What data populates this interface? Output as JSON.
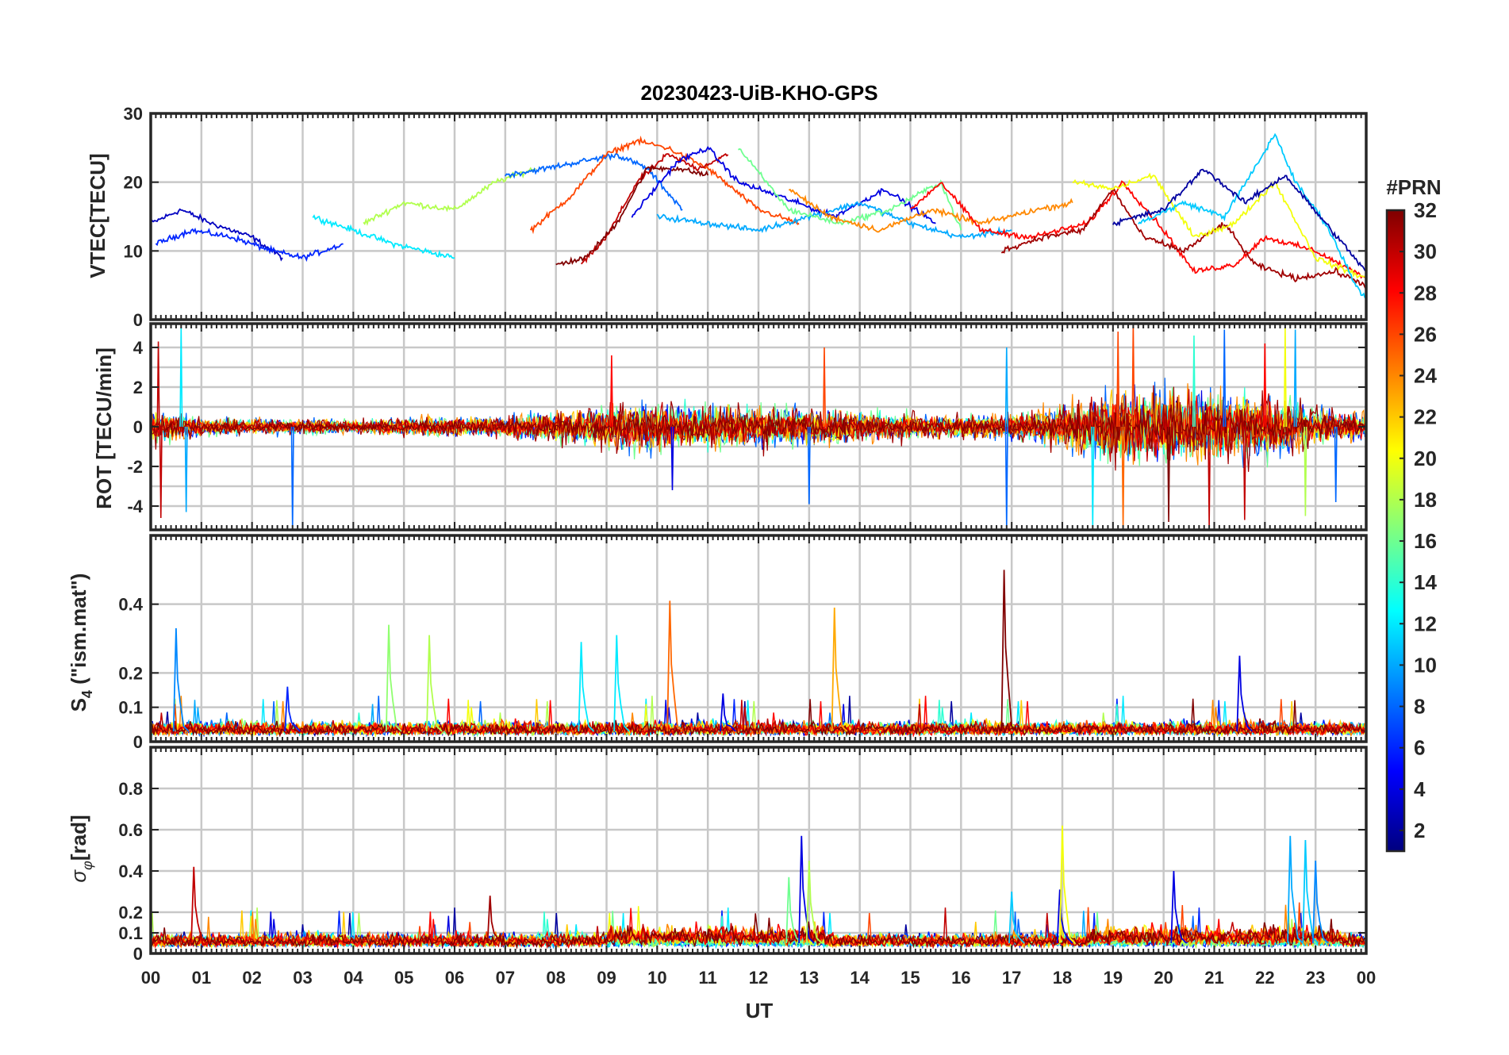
{
  "chart_data": {
    "type": "line",
    "title": "20230423-UiB-KHO-GPS",
    "xlabel": "UT",
    "x_ticks": [
      "00",
      "01",
      "02",
      "03",
      "04",
      "05",
      "06",
      "07",
      "08",
      "09",
      "10",
      "11",
      "12",
      "13",
      "14",
      "15",
      "16",
      "17",
      "18",
      "19",
      "20",
      "21",
      "22",
      "23",
      "00"
    ],
    "xlim": [
      0,
      24
    ],
    "grid": true,
    "colorbar": {
      "title": "#PRN",
      "range": [
        1,
        32
      ],
      "ticks": [
        "32",
        "30",
        "28",
        "26",
        "24",
        "22",
        "20",
        "18",
        "16",
        "14",
        "12",
        "10",
        "8",
        "6",
        "4",
        "2"
      ],
      "colormap": "jet",
      "colors": [
        "#00007f",
        "#0000ff",
        "#007fff",
        "#00ffff",
        "#7fff7f",
        "#ffff00",
        "#ff7f00",
        "#ff0000",
        "#7f0000"
      ],
      "placement": "right"
    },
    "panels": [
      {
        "ylabel": "VTEC[TECU]",
        "ylim": [
          0,
          30
        ],
        "y_ticks": [
          "30",
          "20",
          "10",
          "0"
        ],
        "y_tick_values": [
          30,
          20,
          10,
          0
        ],
        "series": [
          {
            "prn": 3,
            "points": [
              [
                0,
                14
              ],
              [
                0.6,
                16
              ],
              [
                1.2,
                14
              ],
              [
                2,
                12
              ],
              [
                2.6,
                9
              ]
            ]
          },
          {
            "prn": 6,
            "points": [
              [
                0.1,
                11
              ],
              [
                0.8,
                13
              ],
              [
                1.6,
                12
              ],
              [
                2.4,
                10
              ],
              [
                3,
                9
              ],
              [
                3.8,
                11
              ]
            ]
          },
          {
            "prn": 12,
            "points": [
              [
                3.2,
                15
              ],
              [
                4,
                13
              ],
              [
                4.8,
                11
              ],
              [
                5.4,
                10
              ],
              [
                6,
                9
              ]
            ]
          },
          {
            "prn": 18,
            "points": [
              [
                4.2,
                14
              ],
              [
                5,
                17
              ],
              [
                6,
                16
              ],
              [
                6.8,
                20
              ],
              [
                7.6,
                22
              ]
            ]
          },
          {
            "prn": 8,
            "points": [
              [
                7,
                21
              ],
              [
                7.8,
                22
              ],
              [
                8.5,
                23
              ],
              [
                9.2,
                24
              ],
              [
                9.8,
                22
              ],
              [
                10.5,
                16
              ]
            ]
          },
          {
            "prn": 26,
            "points": [
              [
                7.5,
                13
              ],
              [
                8.3,
                18
              ],
              [
                9,
                24
              ],
              [
                9.6,
                26
              ],
              [
                10.2,
                25
              ],
              [
                11,
                22
              ],
              [
                12,
                16
              ],
              [
                12.8,
                14
              ]
            ]
          },
          {
            "prn": 30,
            "points": [
              [
                8.5,
                8
              ],
              [
                9,
                12
              ],
              [
                9.6,
                20
              ],
              [
                10.2,
                24
              ],
              [
                10.8,
                22
              ],
              [
                11.4,
                24
              ]
            ]
          },
          {
            "prn": 32,
            "points": [
              [
                8,
                8
              ],
              [
                8.6,
                9
              ],
              [
                9.2,
                14
              ],
              [
                9.8,
                22
              ],
              [
                10.4,
                22
              ],
              [
                11,
                21
              ]
            ]
          },
          {
            "prn": 4,
            "points": [
              [
                9.5,
                15
              ],
              [
                10.4,
                23
              ],
              [
                11,
                25
              ],
              [
                11.6,
                20
              ],
              [
                12.4,
                18
              ],
              [
                13.5,
                15
              ],
              [
                14.5,
                19
              ],
              [
                15.5,
                14
              ]
            ]
          },
          {
            "prn": 10,
            "points": [
              [
                10,
                15
              ],
              [
                11,
                14
              ],
              [
                12,
                13
              ],
              [
                13,
                15
              ],
              [
                14,
                17
              ],
              [
                15,
                14
              ],
              [
                16,
                12
              ],
              [
                17,
                13
              ]
            ]
          },
          {
            "prn": 16,
            "points": [
              [
                11.6,
                25
              ],
              [
                12.6,
                16
              ],
              [
                13.6,
                14
              ],
              [
                14.6,
                16
              ],
              [
                15.6,
                20
              ],
              [
                16,
                13
              ]
            ]
          },
          {
            "prn": 24,
            "points": [
              [
                12.6,
                19
              ],
              [
                13.4,
                15
              ],
              [
                14.4,
                13
              ],
              [
                15.4,
                16
              ],
              [
                16.4,
                14
              ],
              [
                17.5,
                16
              ],
              [
                18.2,
                17
              ]
            ]
          },
          {
            "prn": 28,
            "points": [
              [
                15,
                16
              ],
              [
                15.6,
                20
              ],
              [
                16.4,
                13
              ],
              [
                17.4,
                12
              ],
              [
                18.5,
                14
              ],
              [
                19.2,
                20
              ],
              [
                20,
                13
              ],
              [
                20.6,
                7
              ],
              [
                21.4,
                8
              ],
              [
                22,
                12
              ],
              [
                23,
                10
              ],
              [
                24,
                6
              ]
            ]
          },
          {
            "prn": 31,
            "points": [
              [
                16.8,
                10
              ],
              [
                17.6,
                12
              ],
              [
                18.4,
                13
              ],
              [
                19,
                19
              ],
              [
                19.6,
                12
              ],
              [
                20.4,
                10
              ],
              [
                21.2,
                14
              ],
              [
                21.8,
                8
              ],
              [
                22.6,
                6
              ],
              [
                23.4,
                7
              ],
              [
                24,
                5
              ]
            ]
          },
          {
            "prn": 20,
            "points": [
              [
                18.2,
                20
              ],
              [
                19,
                19
              ],
              [
                19.8,
                21
              ],
              [
                20.6,
                12
              ],
              [
                21.4,
                14
              ],
              [
                22.2,
                20
              ],
              [
                23,
                9
              ],
              [
                24,
                6
              ]
            ]
          },
          {
            "prn": 11,
            "points": [
              [
                19.5,
                14
              ],
              [
                20.4,
                17
              ],
              [
                21.2,
                15
              ],
              [
                21.8,
                22
              ],
              [
                22.2,
                27
              ],
              [
                22.6,
                20
              ],
              [
                23.2,
                14
              ],
              [
                23.8,
                5
              ],
              [
                24,
                3
              ]
            ]
          },
          {
            "prn": 2,
            "points": [
              [
                19,
                14
              ],
              [
                20,
                16
              ],
              [
                20.8,
                22
              ],
              [
                21.6,
                17
              ],
              [
                22.4,
                21
              ],
              [
                23.2,
                14
              ],
              [
                24,
                7
              ]
            ]
          }
        ]
      },
      {
        "ylabel": "ROT [TECU/min]",
        "ylim": [
          -5.2,
          5.2
        ],
        "y_ticks": [
          "4",
          "2",
          "0",
          "-2",
          "-4"
        ],
        "y_tick_values": [
          4,
          2,
          0,
          -2,
          -4
        ],
        "activity_profile": {
          "x": [
            0,
            1,
            2,
            3,
            4,
            5,
            6,
            7,
            8,
            9,
            10,
            11,
            12,
            13,
            14,
            15,
            16,
            17,
            18,
            19,
            20,
            21,
            22,
            23,
            24
          ],
          "amplitude": [
            1.4,
            0.7,
            0.6,
            0.6,
            0.5,
            0.7,
            0.8,
            0.9,
            1.2,
            1.6,
            1.9,
            1.7,
            1.6,
            1.5,
            1.2,
            1.0,
            0.9,
            1.0,
            1.6,
            2.8,
            3.0,
            2.8,
            2.6,
            1.5,
            1.0
          ]
        },
        "spikes": [
          [
            0.15,
            4.3,
            30
          ],
          [
            0.2,
            -4.6,
            30
          ],
          [
            0.6,
            5.0,
            12
          ],
          [
            0.7,
            -4.3,
            10
          ],
          [
            2.8,
            -5.2,
            8
          ],
          [
            9.1,
            3.6,
            28
          ],
          [
            10.3,
            -3.2,
            4
          ],
          [
            13.0,
            -3.9,
            8
          ],
          [
            13.3,
            4.0,
            26
          ],
          [
            16.9,
            -5.1,
            8
          ],
          [
            16.9,
            4.0,
            10
          ],
          [
            18.6,
            -5.1,
            12
          ],
          [
            19.1,
            4.8,
            26
          ],
          [
            19.2,
            -5.2,
            25
          ],
          [
            19.4,
            5.2,
            26
          ],
          [
            20.1,
            -4.8,
            32
          ],
          [
            20.6,
            4.6,
            14
          ],
          [
            20.9,
            -5.0,
            30
          ],
          [
            21.2,
            4.9,
            8
          ],
          [
            21.6,
            -4.7,
            30
          ],
          [
            22.0,
            4.2,
            28
          ],
          [
            22.4,
            5.0,
            20
          ],
          [
            22.6,
            4.9,
            10
          ],
          [
            22.8,
            -4.5,
            18
          ],
          [
            23.4,
            -3.8,
            8
          ]
        ]
      },
      {
        "ylabel": "S4 (\"ism.mat\")",
        "ylabel_main": "S",
        "ylabel_sub": "4",
        "ylabel_rest": " (\"ism.mat\")",
        "ylim": [
          0,
          0.6
        ],
        "y_ticks": [
          "0.4",
          "0.2",
          "0.1",
          "0"
        ],
        "y_tick_values": [
          0.4,
          0.2,
          0.1,
          0
        ],
        "baseline": 0.03,
        "spikes": [
          [
            0.5,
            0.33,
            9
          ],
          [
            2.7,
            0.16,
            6
          ],
          [
            4.7,
            0.34,
            17
          ],
          [
            5.5,
            0.31,
            18
          ],
          [
            8.5,
            0.29,
            12
          ],
          [
            9.2,
            0.31,
            12
          ],
          [
            10.25,
            0.41,
            25
          ],
          [
            11.3,
            0.14,
            4
          ],
          [
            13.5,
            0.39,
            23
          ],
          [
            16.85,
            0.5,
            32
          ],
          [
            21.5,
            0.25,
            4
          ]
        ]
      },
      {
        "ylabel": "σφ[rad]",
        "ylabel_main": "σ",
        "ylabel_sub": "φ",
        "ylabel_rest": "[rad]",
        "ylim": [
          0,
          1.0
        ],
        "y_ticks": [
          "0.8",
          "0.6",
          "0.4",
          "0.2",
          "0.1",
          "0"
        ],
        "y_tick_values": [
          0.8,
          0.6,
          0.4,
          0.2,
          0.1,
          0
        ],
        "baseline": 0.05,
        "spikes": [
          [
            0.85,
            0.42,
            30
          ],
          [
            6.7,
            0.28,
            31
          ],
          [
            12.6,
            0.37,
            16
          ],
          [
            12.85,
            0.57,
            4
          ],
          [
            13.0,
            0.45,
            18
          ],
          [
            17.0,
            0.3,
            11
          ],
          [
            17.95,
            0.31,
            4
          ],
          [
            18.0,
            0.62,
            20
          ],
          [
            20.2,
            0.4,
            4
          ],
          [
            22.5,
            0.57,
            10
          ],
          [
            22.8,
            0.55,
            11
          ],
          [
            23.0,
            0.45,
            9
          ]
        ]
      }
    ]
  }
}
